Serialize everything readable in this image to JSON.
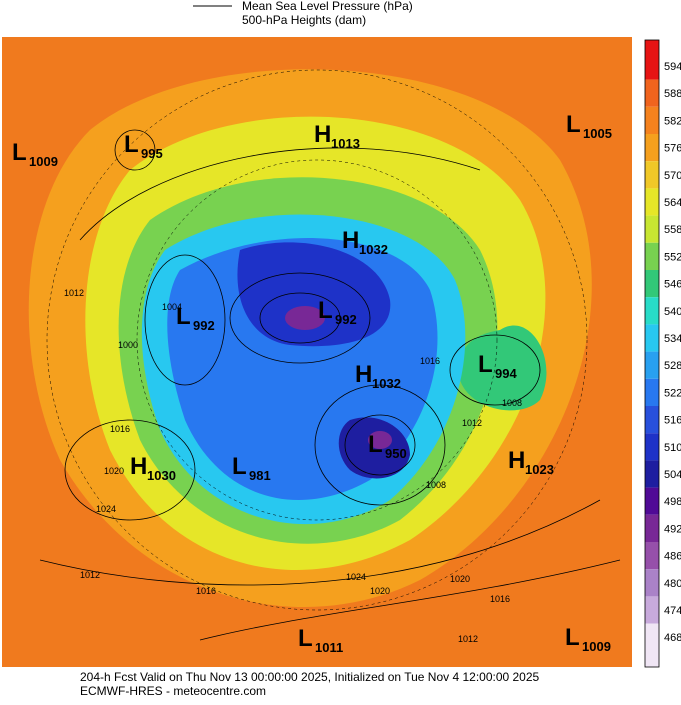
{
  "legend": {
    "line_label": "Mean Sea Level Pressure (hPa)",
    "fill_label": "500-hPa Heights (dam)"
  },
  "colorbar": {
    "ticks": [
      594,
      588,
      582,
      576,
      570,
      564,
      558,
      552,
      546,
      540,
      534,
      528,
      522,
      516,
      510,
      504,
      498,
      492,
      486,
      480,
      474,
      468
    ],
    "colors": [
      "#e61414",
      "#f0641e",
      "#f5821e",
      "#f5a01e",
      "#f0c828",
      "#e6e628",
      "#c8e632",
      "#78d250",
      "#32c878",
      "#28dcc8",
      "#28c8f0",
      "#28a0f0",
      "#2878f0",
      "#2850dc",
      "#1e32c8",
      "#1e1ea0",
      "#500a96",
      "#782896",
      "#9650aa",
      "#aa82c8",
      "#c8aadc",
      "#f0e6f5"
    ]
  },
  "centers": [
    {
      "letter": "L",
      "pressure": 1009
    },
    {
      "letter": "L",
      "pressure": 995
    },
    {
      "letter": "H",
      "pressure": 1013
    },
    {
      "letter": "L",
      "pressure": 1005
    },
    {
      "letter": "H",
      "pressure": 1032
    },
    {
      "letter": "L",
      "pressure": 992
    },
    {
      "letter": "L",
      "pressure": 992
    },
    {
      "letter": "H",
      "pressure": 1032
    },
    {
      "letter": "L",
      "pressure": 994
    },
    {
      "letter": "L",
      "pressure": 950
    },
    {
      "letter": "H",
      "pressure": 1030
    },
    {
      "letter": "L",
      "pressure": 981
    },
    {
      "letter": "H",
      "pressure": 1023
    },
    {
      "letter": "L",
      "pressure": 1011
    },
    {
      "letter": "L",
      "pressure": 1009
    }
  ],
  "isobar_labels": [
    1012,
    1016,
    1020,
    1024,
    1016,
    1012,
    1020,
    1016,
    1012,
    1008,
    1004,
    1000,
    1016,
    1012,
    1008,
    1024,
    1020
  ],
  "footer": {
    "line1": "204-h Fcst Valid on Thu Nov 13 00:00:00 2025, Initialized on Tue Nov  4 12:00:00 2025",
    "line2": "ECMWF-HRES  - meteocentre.com"
  }
}
